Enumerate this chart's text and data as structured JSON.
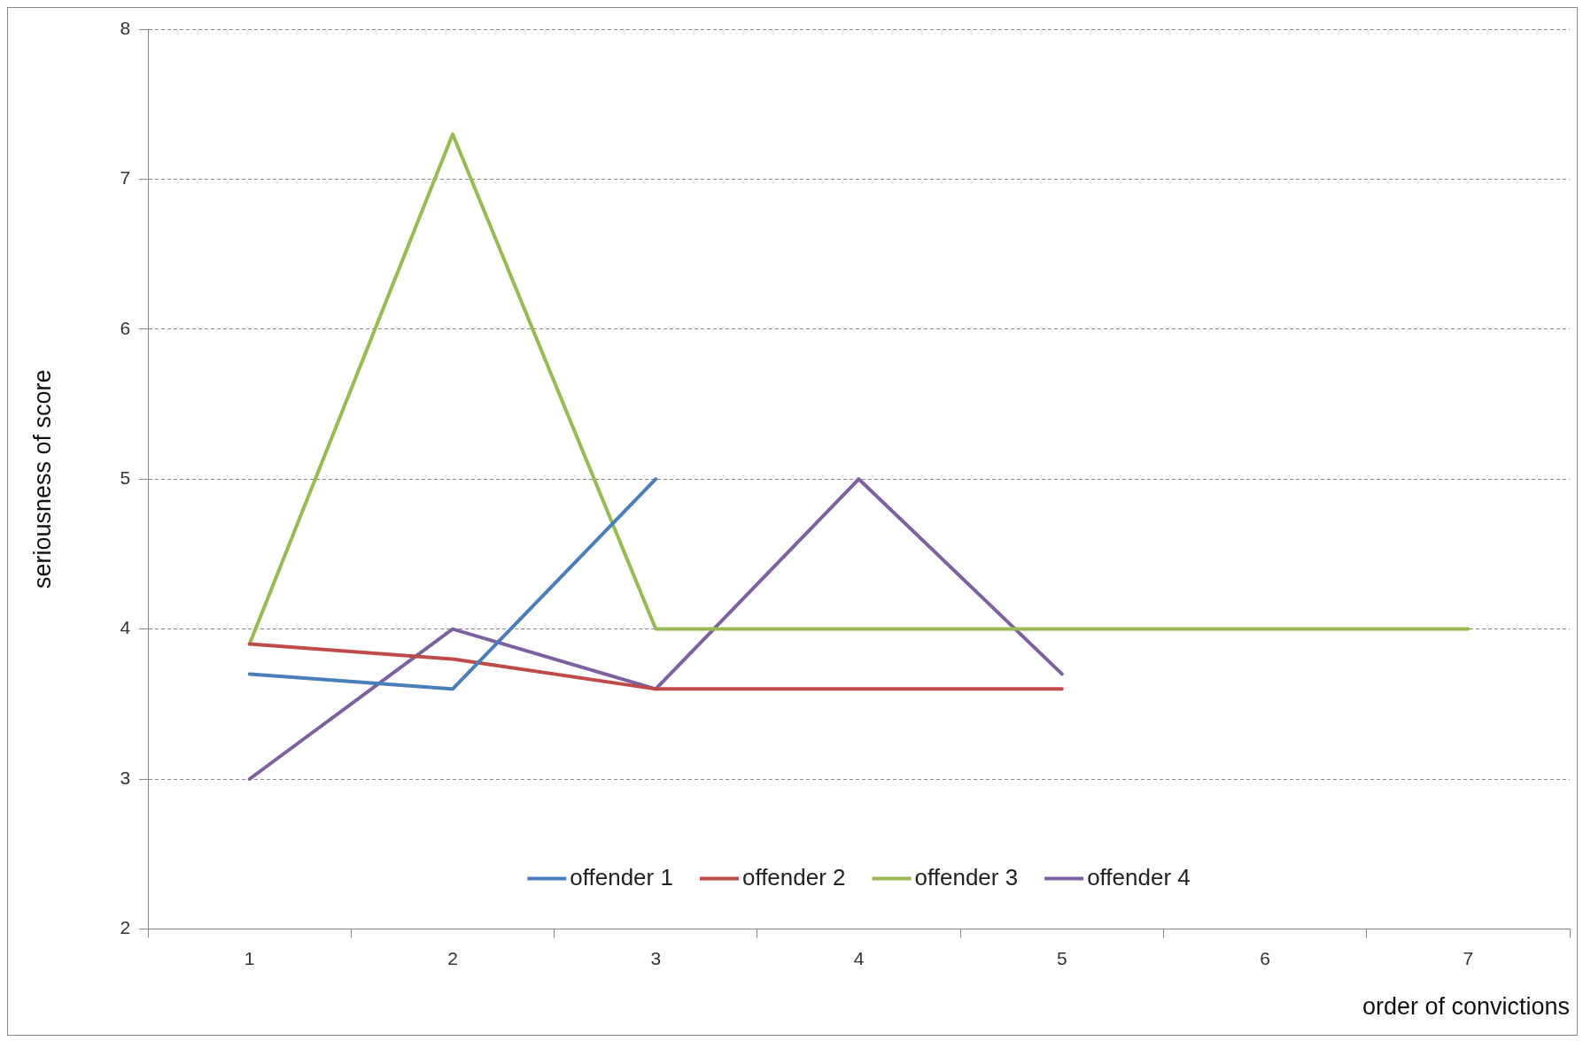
{
  "chart_data": {
    "type": "line",
    "xlabel": "order of convictions",
    "ylabel": "seriousness of score",
    "categories": [
      "1",
      "2",
      "3",
      "4",
      "5",
      "6",
      "7"
    ],
    "series": [
      {
        "name": "offender 1",
        "color": "#4a7ebb",
        "values": [
          3.7,
          3.6,
          5,
          null,
          null,
          null,
          null
        ]
      },
      {
        "name": "offender 2",
        "color": "#be4b48",
        "values": [
          3.9,
          3.8,
          3.6,
          3.6,
          3.6,
          null,
          null
        ]
      },
      {
        "name": "offender 3",
        "color": "#98b954",
        "values": [
          3.9,
          7.3,
          4,
          4,
          4,
          4,
          4
        ]
      },
      {
        "name": "offender 4",
        "color": "#7d60a0",
        "values": [
          3,
          4,
          3.6,
          5,
          3.7,
          null,
          null
        ]
      }
    ],
    "ylim": [
      2,
      8
    ],
    "yticks": [
      2,
      3,
      4,
      5,
      6,
      7,
      8
    ],
    "grid": "y",
    "legend": "bottom",
    "marker": "none",
    "line_style": "solid"
  }
}
